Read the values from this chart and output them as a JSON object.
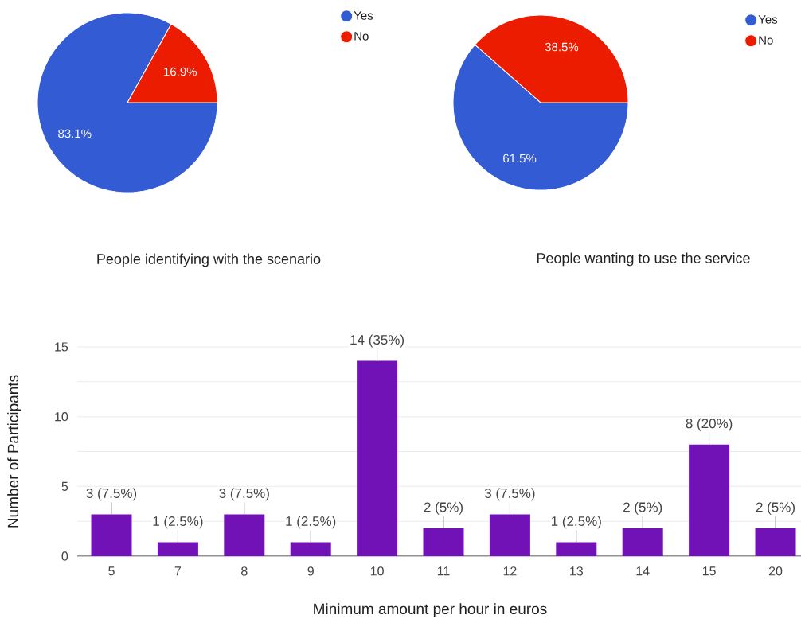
{
  "chart_data": [
    {
      "type": "pie",
      "title": "People identifying with the scenario",
      "categories": [
        "Yes",
        "No"
      ],
      "values": [
        83.1,
        16.9
      ],
      "colors": [
        "#335bd3",
        "#ec1c00"
      ],
      "value_labels": [
        "83.1%",
        "16.9%"
      ],
      "legend": "top right"
    },
    {
      "type": "pie",
      "title": "People wanting to use the service",
      "categories": [
        "Yes",
        "No"
      ],
      "values": [
        61.5,
        38.5
      ],
      "colors": [
        "#335bd3",
        "#ec1c00"
      ],
      "value_labels": [
        "61.5%",
        "38.5%"
      ],
      "legend": "top right"
    },
    {
      "type": "bar",
      "xlabel": "Minimum amount per hour in euros",
      "ylabel": "Number of Participants",
      "categories": [
        "5",
        "7",
        "8",
        "9",
        "10",
        "11",
        "12",
        "13",
        "14",
        "15",
        "20"
      ],
      "values": [
        3,
        1,
        3,
        1,
        14,
        2,
        3,
        1,
        2,
        8,
        2
      ],
      "value_labels": [
        "3 (7.5%)",
        "1 (2.5%)",
        "3 (7.5%)",
        "1 (2.5%)",
        "14 (35%)",
        "2 (5%)",
        "3 (7.5%)",
        "1 (2.5%)",
        "2 (5%)",
        "8 (20%)",
        "2 (5%)"
      ],
      "color": "#7012b6",
      "ylim": [
        0,
        15
      ],
      "yticks": [
        0,
        {
          "value": 2.5,
          "label": null
        },
        5,
        {
          "value": 7.5,
          "label": null
        },
        10,
        {
          "value": 12.5,
          "label": null
        },
        15
      ],
      "grid": "y"
    }
  ]
}
